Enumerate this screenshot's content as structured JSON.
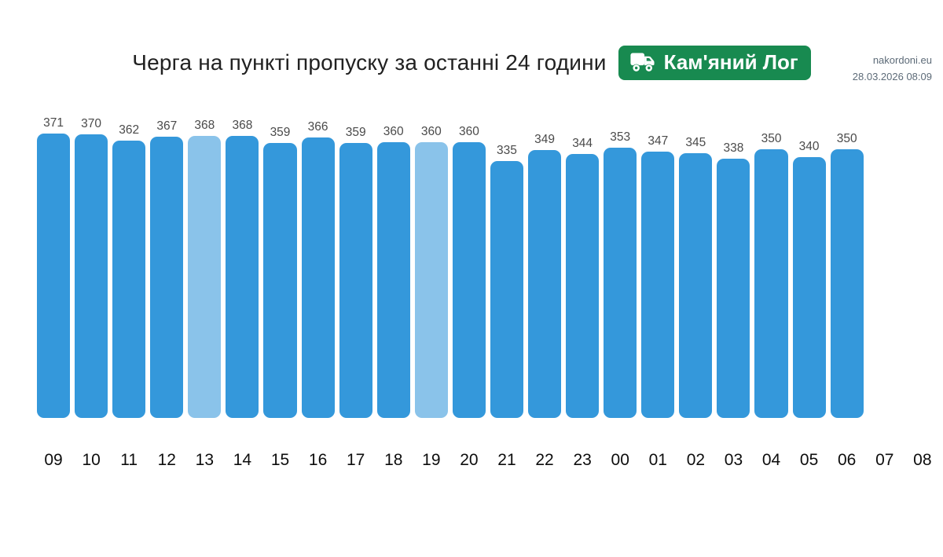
{
  "page": {
    "site": "nakordoni.eu",
    "timestamp": "28.03.2026 08:09"
  },
  "header": {
    "title": "Черга на пункті пропуску за останні 24 години",
    "badge": {
      "label": "Кам'яний Лог",
      "icon": "truck-icon",
      "color": "#188a50"
    }
  },
  "chart_data": {
    "type": "bar",
    "title": "Черга на пункті пропуску за останні 24 години",
    "xlabel": "",
    "ylabel": "",
    "categories": [
      "09",
      "10",
      "11",
      "12",
      "13",
      "14",
      "15",
      "16",
      "17",
      "18",
      "19",
      "20",
      "21",
      "22",
      "23",
      "00",
      "01",
      "02",
      "03",
      "04",
      "05",
      "06",
      "07",
      "08"
    ],
    "values": [
      371,
      370,
      362,
      367,
      368,
      368,
      359,
      366,
      359,
      360,
      360,
      360,
      335,
      349,
      344,
      353,
      347,
      345,
      338,
      350,
      340,
      350,
      null,
      null
    ],
    "highlight_indexes": [
      4,
      10
    ],
    "ylim": [
      0,
      371
    ],
    "grid": false,
    "legend": false,
    "value_labels": true,
    "colors": {
      "bar": "#3498db",
      "highlight": "#8ac3ea",
      "value_label": "#4a4a4a",
      "tick_label": "#0d0d0d"
    }
  }
}
